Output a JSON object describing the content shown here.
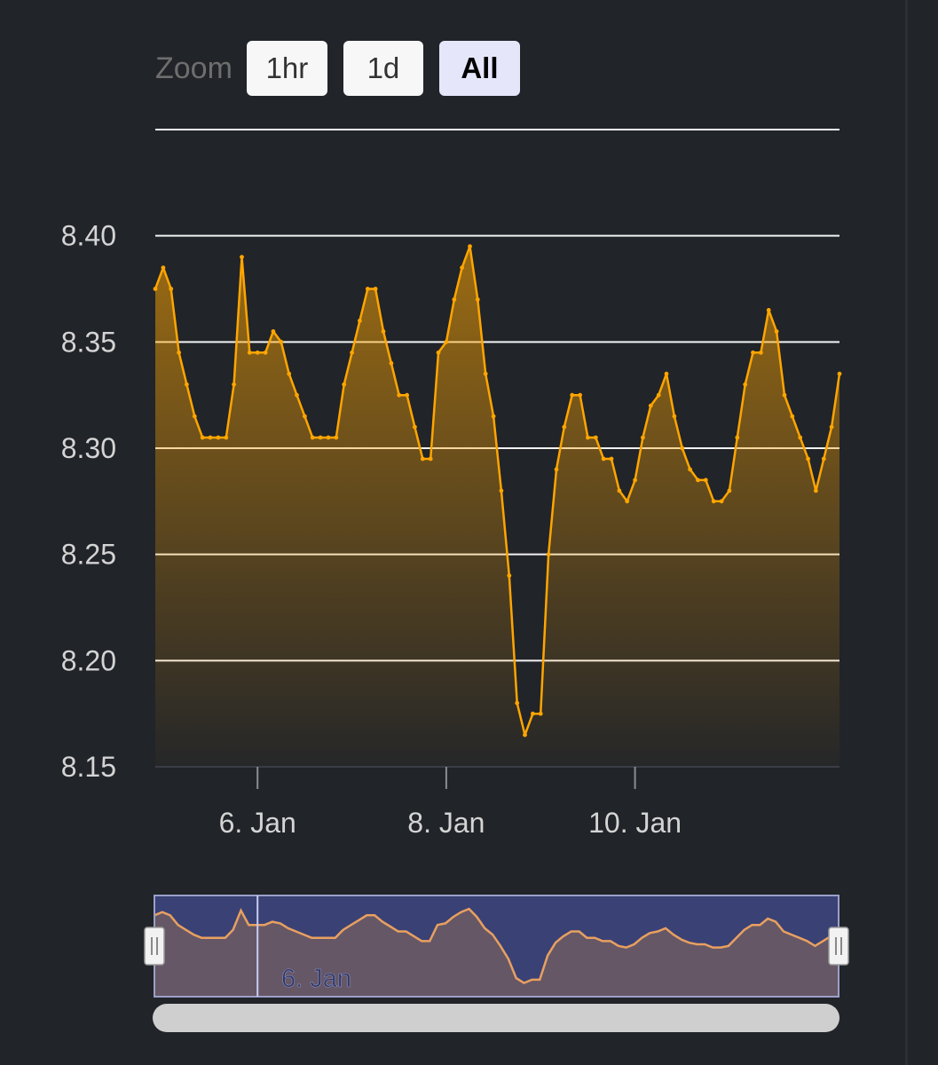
{
  "range_selector": {
    "label": "Zoom",
    "buttons": [
      {
        "label": "1hr",
        "active": false
      },
      {
        "label": "1d",
        "active": false
      },
      {
        "label": "All",
        "active": true
      }
    ]
  },
  "colors": {
    "background": "#212429",
    "series": "#FFA500",
    "grid": "#f2f2f2",
    "navigator_mask": "#3a4175",
    "navigator_series": "#e8a060"
  },
  "navigator": {
    "label": "6. Jan"
  },
  "chart_data": {
    "type": "area",
    "title": "",
    "xlabel": "",
    "ylabel": "",
    "ylim": [
      8.15,
      8.45
    ],
    "y_ticks": [
      "8.15",
      "8.20",
      "8.25",
      "8.30",
      "8.35",
      "8.40"
    ],
    "x_ticks": [
      {
        "x": "2024-01-06",
        "label": "6. Jan"
      },
      {
        "x": "2024-01-08",
        "label": "8. Jan"
      },
      {
        "x": "2024-01-10",
        "label": "10. Jan"
      }
    ],
    "grid": true,
    "legend": "none",
    "series": [
      {
        "x": [
          "2024-01-04 22:00",
          "2024-01-05 00:00",
          "2024-01-05 02:00",
          "2024-01-05 04:00",
          "2024-01-05 06:00",
          "2024-01-05 08:00",
          "2024-01-05 10:00",
          "2024-01-05 12:00",
          "2024-01-05 14:00",
          "2024-01-05 16:00",
          "2024-01-05 18:00",
          "2024-01-05 20:00",
          "2024-01-05 22:00",
          "2024-01-06 00:00",
          "2024-01-06 02:00",
          "2024-01-06 04:00",
          "2024-01-06 06:00",
          "2024-01-06 08:00",
          "2024-01-06 10:00",
          "2024-01-06 12:00",
          "2024-01-06 14:00",
          "2024-01-06 16:00",
          "2024-01-06 18:00",
          "2024-01-06 20:00",
          "2024-01-06 22:00",
          "2024-01-07 00:00",
          "2024-01-07 02:00",
          "2024-01-07 04:00",
          "2024-01-07 06:00",
          "2024-01-07 08:00",
          "2024-01-07 10:00",
          "2024-01-07 12:00",
          "2024-01-07 14:00",
          "2024-01-07 16:00",
          "2024-01-07 18:00",
          "2024-01-07 20:00",
          "2024-01-07 22:00",
          "2024-01-08 00:00",
          "2024-01-08 02:00",
          "2024-01-08 04:00",
          "2024-01-08 06:00",
          "2024-01-08 08:00",
          "2024-01-08 10:00",
          "2024-01-08 12:00",
          "2024-01-08 14:00",
          "2024-01-08 16:00",
          "2024-01-08 18:00",
          "2024-01-08 20:00",
          "2024-01-08 22:00",
          "2024-01-09 00:00",
          "2024-01-09 02:00",
          "2024-01-09 04:00",
          "2024-01-09 06:00",
          "2024-01-09 08:00",
          "2024-01-09 10:00",
          "2024-01-09 12:00",
          "2024-01-09 14:00",
          "2024-01-09 16:00",
          "2024-01-09 18:00",
          "2024-01-09 20:00",
          "2024-01-09 22:00",
          "2024-01-10 00:00",
          "2024-01-10 02:00",
          "2024-01-10 04:00",
          "2024-01-10 06:00",
          "2024-01-10 08:00",
          "2024-01-10 10:00",
          "2024-01-10 12:00",
          "2024-01-10 14:00",
          "2024-01-10 16:00",
          "2024-01-10 18:00",
          "2024-01-10 20:00",
          "2024-01-10 22:00",
          "2024-01-11 00:00",
          "2024-01-11 02:00",
          "2024-01-11 04:00",
          "2024-01-11 06:00",
          "2024-01-11 08:00",
          "2024-01-11 10:00",
          "2024-01-11 12:00",
          "2024-01-11 14:00",
          "2024-01-11 16:00",
          "2024-01-11 18:00",
          "2024-01-11 20:00",
          "2024-01-11 22:00",
          "2024-01-12 00:00",
          "2024-01-12 02:00",
          "2024-01-12 04:00"
        ],
        "values": [
          8.375,
          8.385,
          8.375,
          8.345,
          8.33,
          8.315,
          8.305,
          8.305,
          8.305,
          8.305,
          8.33,
          8.39,
          8.345,
          8.345,
          8.345,
          8.355,
          8.35,
          8.335,
          8.325,
          8.315,
          8.305,
          8.305,
          8.305,
          8.305,
          8.33,
          8.345,
          8.36,
          8.375,
          8.375,
          8.355,
          8.34,
          8.325,
          8.325,
          8.31,
          8.295,
          8.295,
          8.345,
          8.35,
          8.37,
          8.385,
          8.395,
          8.37,
          8.335,
          8.315,
          8.28,
          8.24,
          8.18,
          8.165,
          8.175,
          8.175,
          8.25,
          8.29,
          8.31,
          8.325,
          8.325,
          8.305,
          8.305,
          8.295,
          8.295,
          8.28,
          8.275,
          8.285,
          8.305,
          8.32,
          8.325,
          8.335,
          8.315,
          8.3,
          8.29,
          8.285,
          8.285,
          8.275,
          8.275,
          8.28,
          8.305,
          8.33,
          8.345,
          8.345,
          8.365,
          8.355,
          8.325,
          8.315,
          8.305,
          8.295,
          8.28,
          8.295,
          8.31,
          8.335
        ]
      }
    ]
  }
}
